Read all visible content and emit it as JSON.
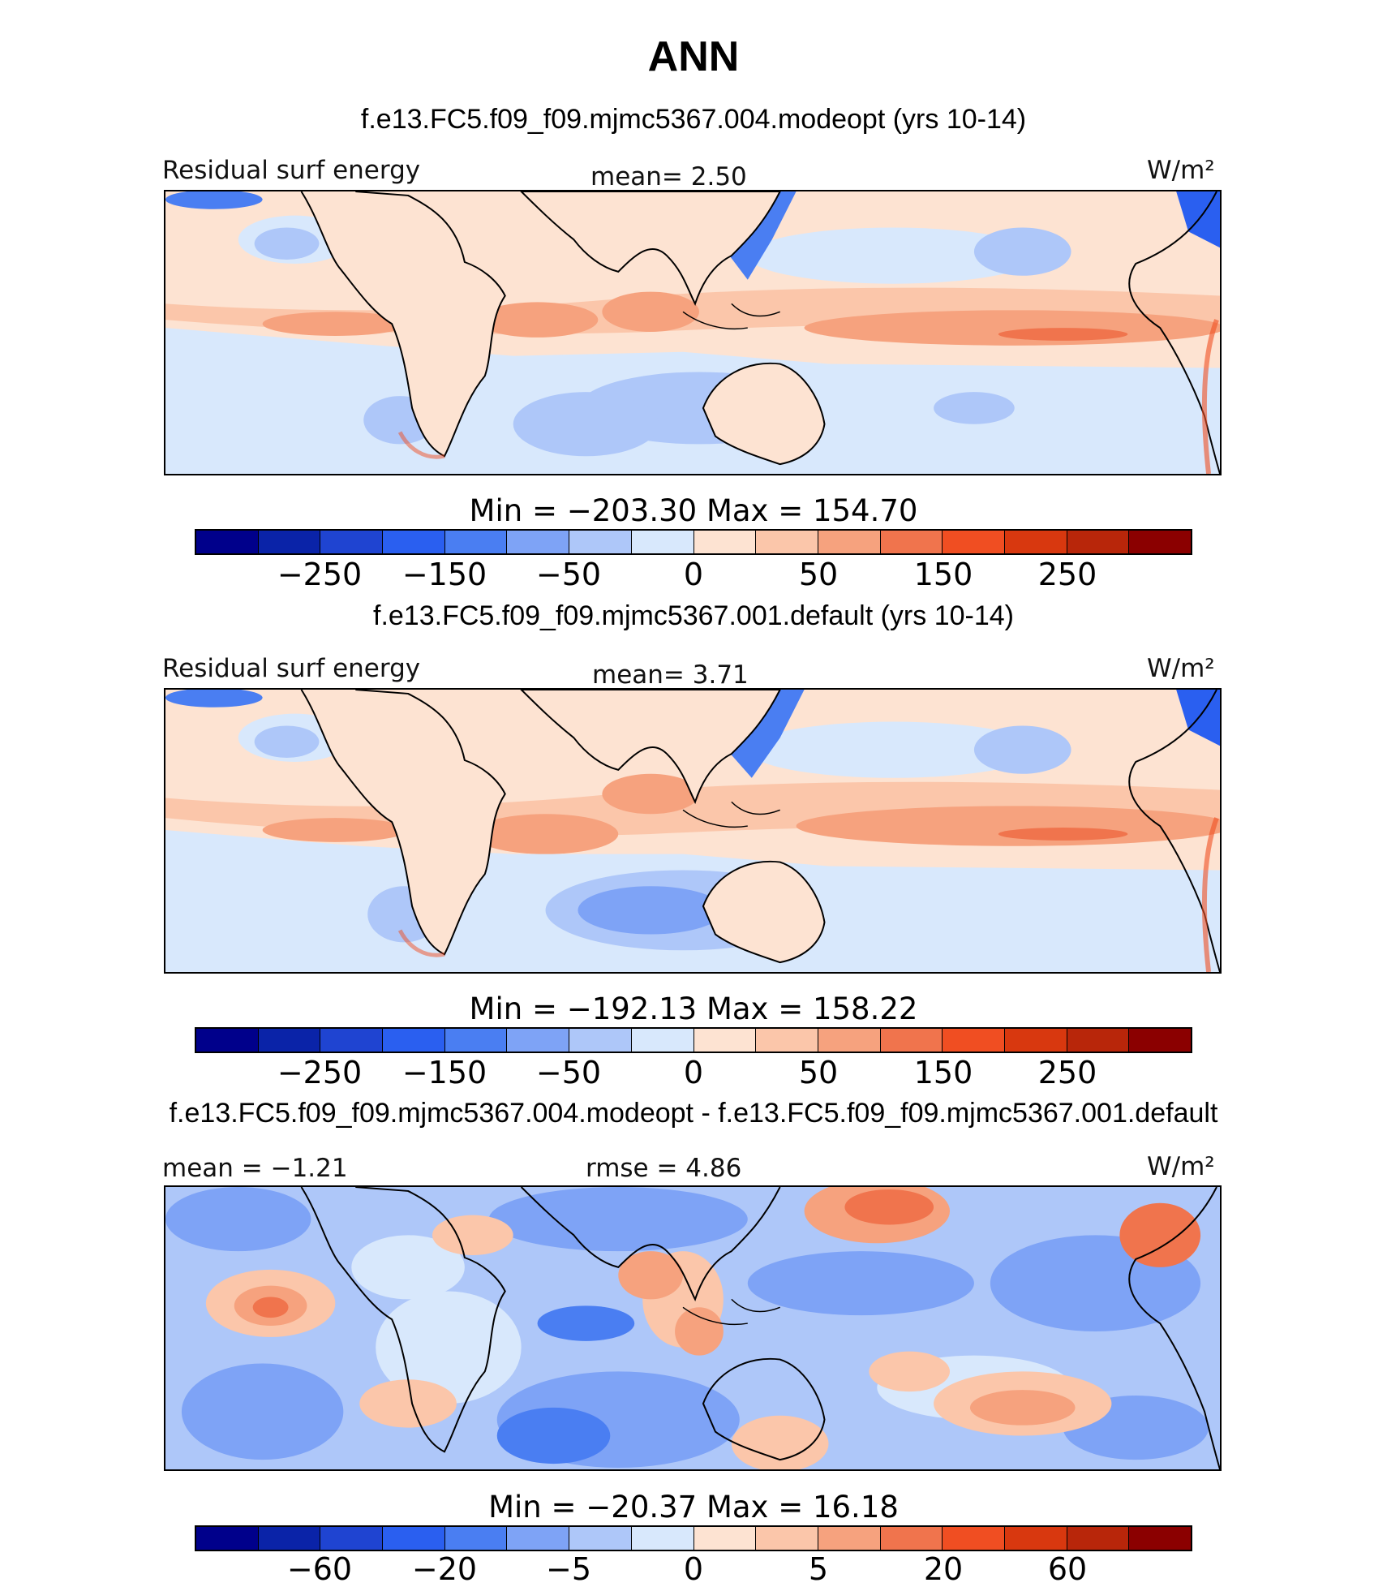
{
  "title": "ANN",
  "colormap": [
    "#00008b",
    "#0a23a8",
    "#1f44d1",
    "#2a5ff0",
    "#4a7ef2",
    "#7ea3f6",
    "#aec7f9",
    "#d8e8fc",
    "#fde3d2",
    "#fbc6aa",
    "#f6a27e",
    "#f0744d",
    "#f04e22",
    "#d8380f",
    "#b8260a",
    "#8b0000"
  ],
  "panels": [
    {
      "subtitle": "f.e13.FC5.f09_f09.mjmc5367.004.modeopt (yrs 10-14)",
      "left_label": "Residual surf energy",
      "center_label": "mean=   2.50",
      "units": "W/m²",
      "minmax": "Min  =  −203.30  Max  =  154.70",
      "ticks": [
        "−250",
        "−150",
        "−50",
        "0",
        "50",
        "150",
        "250"
      ]
    },
    {
      "subtitle": "f.e13.FC5.f09_f09.mjmc5367.001.default (yrs 10-14)",
      "left_label": "Residual surf energy",
      "center_label": "mean=   3.71",
      "units": "W/m²",
      "minmax": "Min  =  −192.13  Max  =  158.22",
      "ticks": [
        "−250",
        "−150",
        "−50",
        "0",
        "50",
        "150",
        "250"
      ]
    },
    {
      "subtitle": "f.e13.FC5.f09_f09.mjmc5367.004.modeopt - f.e13.FC5.f09_f09.mjmc5367.001.default",
      "left_label": "mean =   −1.21",
      "center_label": "rmse =    4.86",
      "units": "W/m²",
      "minmax": "Min  =  −20.37  Max  =   16.18",
      "ticks": [
        "−60",
        "−20",
        "−5",
        "0",
        "5",
        "20",
        "60"
      ]
    }
  ]
}
